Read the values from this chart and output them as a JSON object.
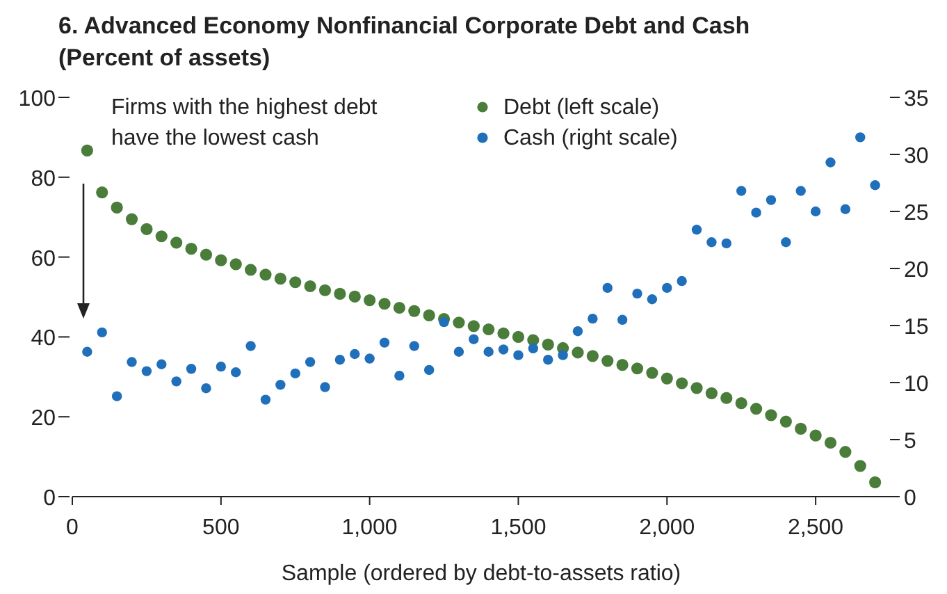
{
  "chart_data": {
    "type": "scatter",
    "title": "6. Advanced Economy Nonfinancial Corporate Debt and Cash",
    "subtitle": "(Percent of assets)",
    "xlabel": "Sample (ordered by debt-to-assets ratio)",
    "x": [
      50,
      100,
      150,
      200,
      250,
      300,
      350,
      400,
      450,
      500,
      550,
      600,
      650,
      700,
      750,
      800,
      850,
      900,
      950,
      1000,
      1050,
      1100,
      1150,
      1200,
      1250,
      1300,
      1350,
      1400,
      1450,
      1500,
      1550,
      1600,
      1650,
      1700,
      1750,
      1800,
      1850,
      1900,
      1950,
      2000,
      2050,
      2100,
      2150,
      2200,
      2250,
      2300,
      2350,
      2400,
      2450,
      2500,
      2550,
      2600,
      2650,
      2700
    ],
    "series": [
      {
        "name": "Debt (left scale)",
        "color": "#4a7c3a",
        "values": [
          86.7,
          76.2,
          72.4,
          69.5,
          67.0,
          65.2,
          63.6,
          62.1,
          60.6,
          59.2,
          58.2,
          56.8,
          55.6,
          54.6,
          53.7,
          52.7,
          51.7,
          50.8,
          50.1,
          49.2,
          48.3,
          47.3,
          46.5,
          45.4,
          44.5,
          43.6,
          42.7,
          41.9,
          40.9,
          40.0,
          39.2,
          38.1,
          37.2,
          36.1,
          35.2,
          34.0,
          33.0,
          32.1,
          31.0,
          29.6,
          28.4,
          27.2,
          25.9,
          24.7,
          23.4,
          22.0,
          20.4,
          18.8,
          17.0,
          15.3,
          13.5,
          11.2,
          7.7,
          3.6
        ]
      },
      {
        "name": "Cash (right scale)",
        "color": "#1f6fba",
        "axis": "y2",
        "values": [
          12.7,
          14.4,
          8.8,
          11.8,
          11.0,
          11.6,
          10.1,
          11.2,
          9.5,
          11.4,
          10.9,
          13.2,
          8.5,
          9.8,
          10.8,
          11.8,
          9.6,
          12.0,
          12.5,
          12.1,
          13.5,
          10.6,
          13.2,
          11.1,
          15.3,
          12.7,
          13.8,
          12.7,
          12.9,
          12.4,
          13.0,
          12.0,
          12.4,
          14.5,
          15.6,
          18.3,
          15.5,
          17.8,
          17.3,
          18.3,
          18.9,
          23.4,
          22.3,
          22.2,
          26.8,
          24.9,
          26.0,
          22.3,
          26.8,
          25.0,
          29.3,
          25.2,
          31.5,
          27.3
        ]
      }
    ],
    "xlim": [
      0,
      2750
    ],
    "xticks": [
      0,
      500,
      {
        "value": 1000,
        "label": "1,000"
      },
      {
        "value": 1500,
        "label": "1,500"
      },
      {
        "value": 2000,
        "label": "2,000"
      },
      {
        "value": 2500,
        "label": "2,500"
      }
    ],
    "ylim": [
      0,
      100
    ],
    "yticks": [
      0,
      20,
      40,
      60,
      80,
      100
    ],
    "y2lim": [
      0,
      35
    ],
    "y2ticks": [
      0,
      5,
      10,
      15,
      20,
      25,
      30,
      35
    ],
    "annotations": [
      "Firms with the highest debt\nhave the lowest cash"
    ],
    "legend": "top right",
    "marker": "circle",
    "grid": false
  }
}
